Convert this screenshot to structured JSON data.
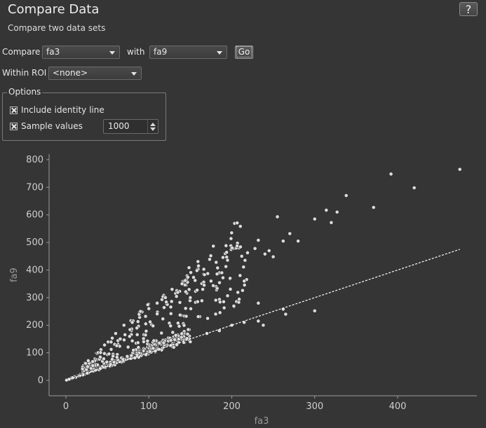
{
  "header": {
    "title": "Compare Data",
    "subtitle": "Compare two data sets",
    "help_label": "?"
  },
  "compare": {
    "compare_label": "Compare",
    "dataset_a": "fa3",
    "with_label": "with",
    "dataset_b": "fa9",
    "go_label": "Go",
    "roi_label": "Within ROI",
    "roi_value": "<none>"
  },
  "options": {
    "group_label": "Options",
    "identity_label": "Include identity line",
    "identity_checked": true,
    "sample_label": "Sample values",
    "sample_checked": true,
    "sample_count": "1000"
  },
  "colors": {
    "background": "#353535",
    "points": "#dcdcdc",
    "identity_line": "#ffffff",
    "axis": "#9a9a9a"
  },
  "chart_data": {
    "type": "scatter",
    "xlabel": "fa3",
    "ylabel": "fa9",
    "xlim": [
      -20,
      500
    ],
    "ylim": [
      -15,
      820
    ],
    "xticks": [
      0,
      100,
      200,
      300,
      400
    ],
    "yticks": [
      0,
      100,
      200,
      300,
      400,
      500,
      600,
      700,
      800
    ],
    "identity_line": {
      "x": [
        0,
        475
      ],
      "y": [
        0,
        475
      ]
    },
    "outliers": [
      [
        475,
        765
      ],
      [
        392,
        748
      ],
      [
        420,
        698
      ],
      [
        371,
        627
      ],
      [
        338,
        670
      ],
      [
        327,
        610
      ],
      [
        314,
        617
      ],
      [
        320,
        572
      ],
      [
        300,
        585
      ],
      [
        280,
        505
      ],
      [
        270,
        532
      ],
      [
        262,
        505
      ],
      [
        255,
        593
      ],
      [
        250,
        448
      ],
      [
        232,
        508
      ],
      [
        228,
        478
      ],
      [
        245,
        470
      ],
      [
        240,
        458
      ],
      [
        212,
        450
      ],
      [
        210,
        380
      ],
      [
        215,
        360
      ],
      [
        198,
        370
      ],
      [
        188,
        390
      ],
      [
        175,
        360
      ],
      [
        165,
        330
      ],
      [
        158,
        398
      ],
      [
        150,
        300
      ],
      [
        140,
        350
      ],
      [
        128,
        330
      ],
      [
        120,
        300
      ],
      [
        110,
        280
      ],
      [
        100,
        260
      ],
      [
        90,
        250
      ],
      [
        80,
        210
      ],
      [
        70,
        200
      ],
      [
        60,
        170
      ],
      [
        300,
        252
      ],
      [
        265,
        240
      ],
      [
        262,
        258
      ],
      [
        232,
        280
      ],
      [
        238,
        200
      ],
      [
        232,
        215
      ],
      [
        215,
        210
      ],
      [
        200,
        200
      ],
      [
        185,
        180
      ],
      [
        170,
        170
      ],
      [
        150,
        140
      ],
      [
        130,
        120
      ]
    ],
    "cluster": {
      "count": 560,
      "seed": 7,
      "lower_band": [
        5,
        150,
        0.95,
        1.25
      ],
      "upper_band": [
        20,
        220,
        1.3,
        2.8
      ]
    }
  }
}
